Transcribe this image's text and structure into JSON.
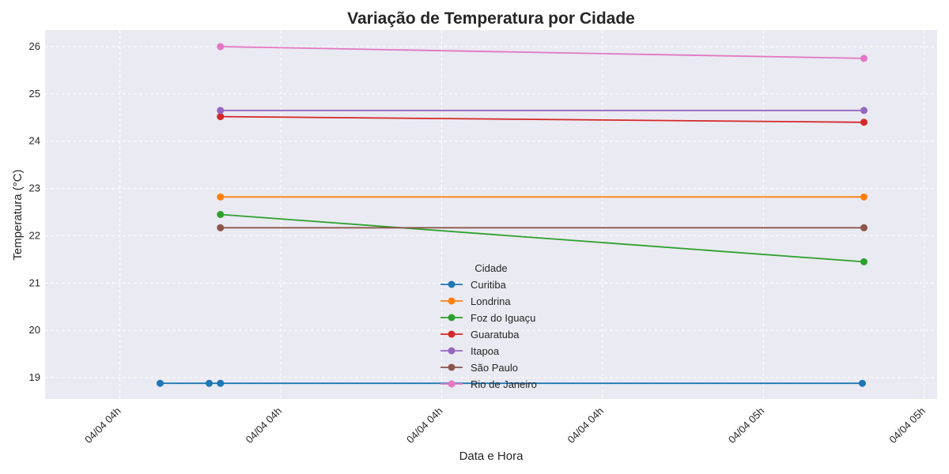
{
  "chart_data": {
    "type": "line",
    "title": "Variação de Temperatura por Cidade",
    "xlabel": "Data e Hora",
    "ylabel": "Temperatura (°C)",
    "ylim": [
      18.55,
      26.35
    ],
    "yticks": [
      19,
      20,
      21,
      22,
      23,
      24,
      25,
      26
    ],
    "xlim": [
      -9.3,
      101.6
    ],
    "x_unit_note": "minutes after 04/04 03:55",
    "xticks": [
      {
        "x": 0,
        "label": "04/04 04h"
      },
      {
        "x": 20,
        "label": "04/04 04h"
      },
      {
        "x": 40,
        "label": "04/04 04h"
      },
      {
        "x": 60,
        "label": "04/04 04h"
      },
      {
        "x": 80,
        "label": "04/04 05h"
      },
      {
        "x": 100,
        "label": "04/04 05h"
      }
    ],
    "grid": true,
    "legend": {
      "title": "Cidade",
      "placement": "lower-center"
    },
    "series": [
      {
        "name": "Curitiba",
        "color": "#1f77b4",
        "points": [
          [
            5,
            18.88
          ],
          [
            11.1,
            18.88
          ],
          [
            12.5,
            18.88
          ],
          [
            92.3,
            18.88
          ]
        ]
      },
      {
        "name": "Londrina",
        "color": "#ff7f0e",
        "points": [
          [
            12.5,
            22.82
          ],
          [
            92.5,
            22.82
          ]
        ]
      },
      {
        "name": "Foz do Iguaçu",
        "color": "#2ca02c",
        "points": [
          [
            12.5,
            22.45
          ],
          [
            92.5,
            21.45
          ]
        ]
      },
      {
        "name": "Guaratuba",
        "color": "#d62728",
        "points": [
          [
            12.5,
            24.52
          ],
          [
            92.5,
            24.4
          ]
        ]
      },
      {
        "name": "Itapoa",
        "color": "#9467bd",
        "points": [
          [
            12.5,
            24.65
          ],
          [
            92.5,
            24.65
          ]
        ]
      },
      {
        "name": "São Paulo",
        "color": "#8c564b",
        "points": [
          [
            12.5,
            22.17
          ],
          [
            92.5,
            22.17
          ]
        ]
      },
      {
        "name": "Rio de Janeiro",
        "color": "#e377c2",
        "points": [
          [
            12.5,
            26.0
          ],
          [
            92.5,
            25.75
          ]
        ]
      }
    ]
  }
}
